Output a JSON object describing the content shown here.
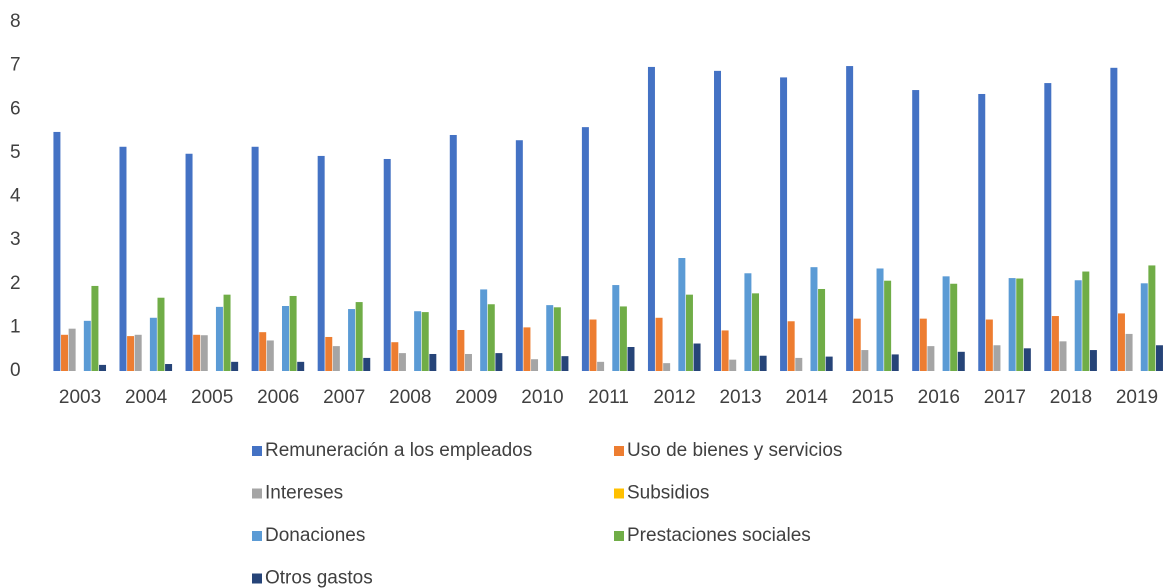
{
  "chart_data": {
    "type": "bar",
    "categories": [
      "2003",
      "2004",
      "2005",
      "2006",
      "2007",
      "2008",
      "2009",
      "2010",
      "2011",
      "2012",
      "2013",
      "2014",
      "2015",
      "2016",
      "2017",
      "2018",
      "2019"
    ],
    "series": [
      {
        "name": "Remuneración a los empleados",
        "color": "#4472c4",
        "values": [
          5.48,
          5.14,
          4.98,
          5.14,
          4.93,
          4.86,
          5.41,
          5.29,
          5.59,
          6.97,
          6.88,
          6.73,
          6.99,
          6.44,
          6.35,
          6.6,
          6.95
        ]
      },
      {
        "name": "Uso de bienes y servicios",
        "color": "#ed7d31",
        "values": [
          0.83,
          0.8,
          0.83,
          0.89,
          0.78,
          0.66,
          0.94,
          1.0,
          1.18,
          1.22,
          0.93,
          1.14,
          1.2,
          1.2,
          1.18,
          1.26,
          1.32
        ]
      },
      {
        "name": "Intereses",
        "color": "#a5a5a5",
        "values": [
          0.97,
          0.83,
          0.82,
          0.7,
          0.57,
          0.41,
          0.39,
          0.27,
          0.21,
          0.18,
          0.26,
          0.3,
          0.48,
          0.57,
          0.59,
          0.68,
          0.85
        ]
      },
      {
        "name": "Subsidios",
        "color": "#ffc000",
        "values": [
          0,
          0,
          0,
          0,
          0,
          0,
          0,
          0,
          0,
          0,
          0,
          0,
          0,
          0,
          0,
          0,
          0
        ]
      },
      {
        "name": "Donaciones",
        "color": "#5b9bd5",
        "values": [
          1.15,
          1.22,
          1.47,
          1.49,
          1.42,
          1.37,
          1.87,
          1.51,
          1.97,
          2.59,
          2.24,
          2.38,
          2.35,
          2.17,
          2.13,
          2.08,
          2.01
        ]
      },
      {
        "name": "Prestaciones sociales",
        "color": "#70ad47",
        "values": [
          1.95,
          1.68,
          1.75,
          1.72,
          1.58,
          1.35,
          1.53,
          1.46,
          1.48,
          1.75,
          1.78,
          1.88,
          2.07,
          2.0,
          2.12,
          2.28,
          2.42
        ]
      },
      {
        "name": "Otros gastos",
        "color": "#264478",
        "values": [
          0.14,
          0.16,
          0.21,
          0.21,
          0.3,
          0.39,
          0.41,
          0.34,
          0.55,
          0.63,
          0.35,
          0.33,
          0.38,
          0.44,
          0.52,
          0.48,
          0.59
        ]
      }
    ],
    "ylim": [
      0,
      8
    ],
    "yticks": [
      0,
      1,
      2,
      3,
      4,
      5,
      6,
      7,
      8
    ],
    "grid": false,
    "legend": "bottom"
  }
}
